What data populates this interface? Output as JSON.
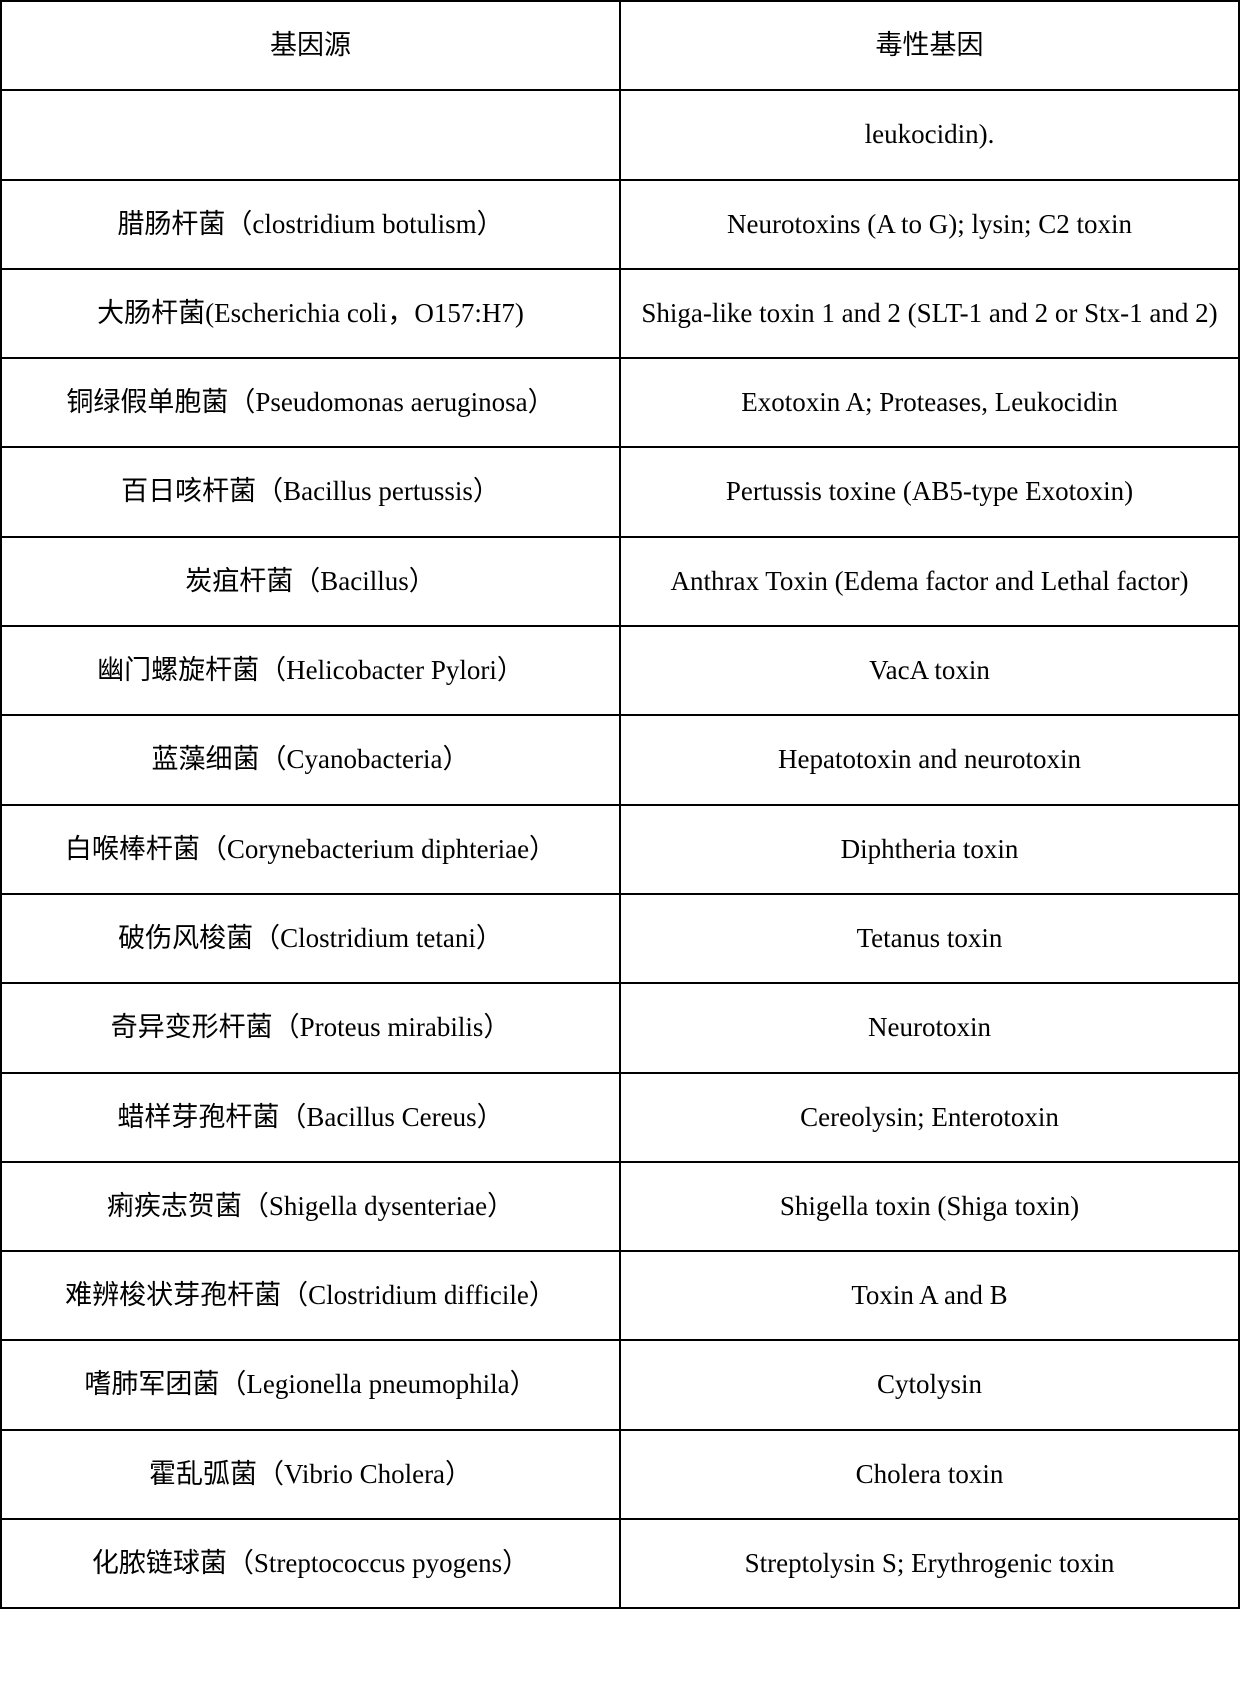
{
  "table": {
    "border_color": "#000000",
    "background_color": "#ffffff",
    "text_color": "#000000",
    "font_size_pt": 20,
    "columns": [
      {
        "key": "source",
        "header": "基因源",
        "width_pct": 50,
        "align": "center"
      },
      {
        "key": "gene",
        "header": "毒性基因",
        "width_pct": 50,
        "align": "center"
      }
    ],
    "rows": [
      {
        "source": "",
        "gene": "leukocidin)."
      },
      {
        "source": "腊肠杆菌（clostridium botulism）",
        "gene": "Neurotoxins (A to G); lysin; C2 toxin"
      },
      {
        "source": "大肠杆菌(Escherichia coli，O157:H7)",
        "gene": "Shiga-like toxin 1 and 2 (SLT-1 and 2 or Stx-1 and 2)"
      },
      {
        "source": "铜绿假单胞菌（Pseudomonas aeruginosa）",
        "gene": "Exotoxin A; Proteases, Leukocidin"
      },
      {
        "source": "百日咳杆菌（Bacillus pertussis）",
        "gene": "Pertussis toxine (AB5-type Exotoxin)"
      },
      {
        "source": "炭疽杆菌（Bacillus）",
        "gene": "Anthrax Toxin (Edema factor and Lethal factor)"
      },
      {
        "source": "幽门螺旋杆菌（Helicobacter Pylori）",
        "gene": "VacA toxin"
      },
      {
        "source": "蓝藻细菌（Cyanobacteria）",
        "gene": "Hepatotoxin and neurotoxin"
      },
      {
        "source": "白喉棒杆菌（Corynebacterium diphteriae）",
        "gene": "Diphtheria toxin"
      },
      {
        "source": "破伤风梭菌（Clostridium tetani）",
        "gene": "Tetanus toxin"
      },
      {
        "source": "奇异变形杆菌（Proteus mirabilis）",
        "gene": "Neurotoxin"
      },
      {
        "source": "蜡样芽孢杆菌（Bacillus Cereus）",
        "gene": "Cereolysin; Enterotoxin"
      },
      {
        "source": "痢疾志贺菌（Shigella dysenteriae）",
        "gene": "Shigella toxin (Shiga toxin)"
      },
      {
        "source": "难辨梭状芽孢杆菌（Clostridium difficile）",
        "gene": "Toxin A and B"
      },
      {
        "source": "嗜肺军团菌（Legionella pneumophila）",
        "gene": "Cytolysin"
      },
      {
        "source": "霍乱弧菌（Vibrio Cholera）",
        "gene": "Cholera toxin"
      },
      {
        "source": "化脓链球菌（Streptococcus pyogens）",
        "gene": "Streptolysin S; Erythrogenic toxin"
      }
    ]
  }
}
